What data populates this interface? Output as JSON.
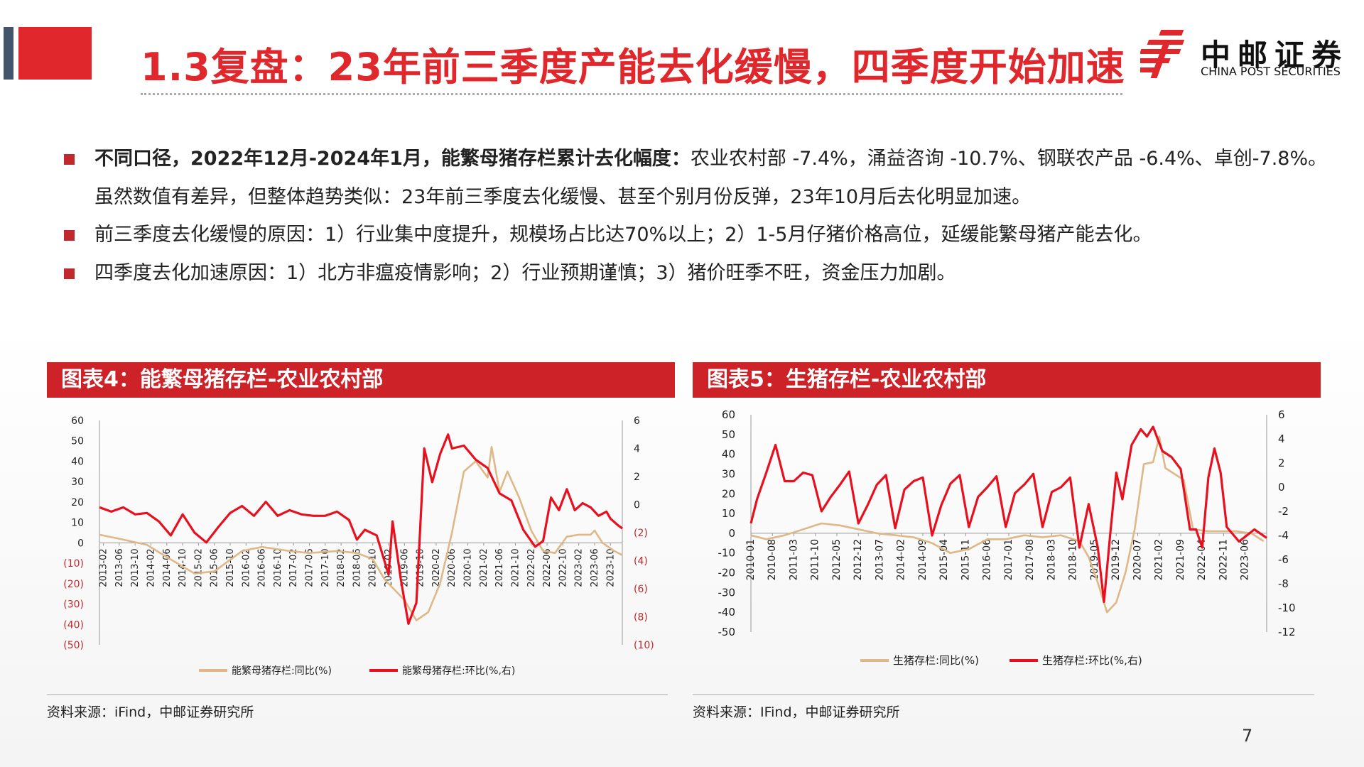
{
  "title": "1.3复盘：23年前三季度产能去化缓慢，四季度开始加速",
  "logo": {
    "cn": "中邮证券",
    "en": "CHINA POST SECURITIES",
    "icon": "china-post-logo-icon",
    "color": "#e0272c"
  },
  "bullets": [
    {
      "bold": "不同口径，2022年12月-2024年1月，能繁母猪存栏累计去化幅度：",
      "text": "农业农村部 -7.4%，涌益咨询 -10.7%、钢联农产品 -6.4%、卓创-7.8%。虽然数值有差异，但整体趋势类似：23年前三季度去化缓慢、甚至个别月份反弹，23年10月后去化明显加速。"
    },
    {
      "bold": "",
      "text": "前三季度去化缓慢的原因：1）行业集中度提升，规模场占比达70%以上；2）1-5月仔猪价格高位，延缓能繁母猪产能去化。"
    },
    {
      "bold": "",
      "text": "四季度去化加速原因：1）北方非瘟疫情影响；2）行业预期谨慎；3）猪价旺季不旺，资金压力加剧。"
    }
  ],
  "colors": {
    "accent": "#e0272c",
    "header": "#cc2228",
    "line_tan": "#deb887",
    "line_red": "#e8101e"
  },
  "page_number": "7",
  "chart_data": [
    {
      "type": "line",
      "header": "图表4：能繁母猪存栏-农业农村部",
      "source": "资料来源：iFind，中邮证券研究所",
      "x_ticks": [
        "2013-02",
        "2013-06",
        "2013-10",
        "2014-02",
        "2014-06",
        "2014-10",
        "2015-02",
        "2015-06",
        "2015-10",
        "2016-02",
        "2016-06",
        "2016-10",
        "2017-02",
        "2017-06",
        "2017-10",
        "2018-02",
        "2018-06",
        "2018-10",
        "2019-02",
        "2019-06",
        "2019-10",
        "2020-02",
        "2020-06",
        "2020-10",
        "2021-02",
        "2021-06",
        "2021-10",
        "2022-02",
        "2022-06",
        "2022-10",
        "2023-02",
        "2023-06",
        "2023-10"
      ],
      "y_left": {
        "min": -50,
        "max": 60,
        "step": 10,
        "labels": [
          "60",
          "50",
          "40",
          "30",
          "20",
          "10",
          "0",
          "(10)",
          "(20)",
          "(30)",
          "(40)",
          "(50)"
        ]
      },
      "y_right": {
        "min": -10,
        "max": 6,
        "step": 2,
        "labels": [
          "6",
          "4",
          "2",
          "0",
          "(2)",
          "(4)",
          "(6)",
          "(8)",
          "(10)"
        ]
      },
      "x_range": [
        "2013-01",
        "2024-01"
      ],
      "grid": false,
      "legend_position": "bottom",
      "series": [
        {
          "name": "能繁母猪存栏:同比(%)",
          "axis": "left",
          "color": "#deb887",
          "points": [
            [
              "2013-01",
              4
            ],
            [
              "2013-06",
              2
            ],
            [
              "2014-01",
              -1
            ],
            [
              "2014-06",
              -7
            ],
            [
              "2015-01",
              -15
            ],
            [
              "2015-06",
              -14
            ],
            [
              "2016-01",
              -4
            ],
            [
              "2016-06",
              -2
            ],
            [
              "2017-01",
              -4
            ],
            [
              "2017-06",
              -5
            ],
            [
              "2018-01",
              -4
            ],
            [
              "2018-06",
              -5
            ],
            [
              "2018-10",
              -8
            ],
            [
              "2019-01",
              -18
            ],
            [
              "2019-06",
              -28
            ],
            [
              "2019-09",
              -38
            ],
            [
              "2019-12",
              -34
            ],
            [
              "2020-03",
              -20
            ],
            [
              "2020-06",
              5
            ],
            [
              "2020-09",
              35
            ],
            [
              "2020-12",
              40
            ],
            [
              "2021-03",
              32
            ],
            [
              "2021-04",
              47
            ],
            [
              "2021-06",
              25
            ],
            [
              "2021-08",
              35
            ],
            [
              "2021-11",
              22
            ],
            [
              "2022-02",
              6
            ],
            [
              "2022-05",
              -4
            ],
            [
              "2022-08",
              -5
            ],
            [
              "2022-11",
              3
            ],
            [
              "2023-02",
              4
            ],
            [
              "2023-05",
              4
            ],
            [
              "2023-06",
              6
            ],
            [
              "2023-08",
              0
            ],
            [
              "2023-11",
              -4
            ],
            [
              "2024-01",
              -6
            ]
          ]
        },
        {
          "name": "能繁母猪存栏:环比(%,右)",
          "axis": "right",
          "color": "#e8101e",
          "points": [
            [
              "2013-01",
              -0.2
            ],
            [
              "2013-04",
              -0.5
            ],
            [
              "2013-07",
              -0.2
            ],
            [
              "2013-10",
              -0.7
            ],
            [
              "2014-01",
              -0.6
            ],
            [
              "2014-04",
              -1.2
            ],
            [
              "2014-07",
              -2.2
            ],
            [
              "2014-10",
              -0.7
            ],
            [
              "2015-01",
              -2.0
            ],
            [
              "2015-04",
              -2.7
            ],
            [
              "2015-07",
              -1.6
            ],
            [
              "2015-10",
              -0.6
            ],
            [
              "2016-01",
              -0.1
            ],
            [
              "2016-04",
              -0.8
            ],
            [
              "2016-07",
              0.2
            ],
            [
              "2016-10",
              -0.8
            ],
            [
              "2017-01",
              -0.4
            ],
            [
              "2017-04",
              -0.7
            ],
            [
              "2017-07",
              -0.8
            ],
            [
              "2017-10",
              -0.8
            ],
            [
              "2018-01",
              -0.5
            ],
            [
              "2018-04",
              -1.1
            ],
            [
              "2018-06",
              -2.5
            ],
            [
              "2018-08",
              -1.8
            ],
            [
              "2018-11",
              -2.2
            ],
            [
              "2019-02",
              -5.0
            ],
            [
              "2019-03",
              -1.2
            ],
            [
              "2019-05",
              -5.2
            ],
            [
              "2019-07",
              -8.5
            ],
            [
              "2019-09",
              -7.0
            ],
            [
              "2019-11",
              4.0
            ],
            [
              "2020-01",
              1.6
            ],
            [
              "2020-03",
              3.6
            ],
            [
              "2020-05",
              5.0
            ],
            [
              "2020-06",
              4.0
            ],
            [
              "2020-09",
              4.2
            ],
            [
              "2020-12",
              3.2
            ],
            [
              "2021-03",
              2.6
            ],
            [
              "2021-06",
              0.8
            ],
            [
              "2021-09",
              0.3
            ],
            [
              "2021-12",
              -1.8
            ],
            [
              "2022-03",
              -3.0
            ],
            [
              "2022-05",
              -2.6
            ],
            [
              "2022-07",
              0.5
            ],
            [
              "2022-09",
              -0.4
            ],
            [
              "2022-11",
              1.1
            ],
            [
              "2023-01",
              -0.4
            ],
            [
              "2023-03",
              0.1
            ],
            [
              "2023-05",
              -0.2
            ],
            [
              "2023-07",
              -0.8
            ],
            [
              "2023-09",
              -0.5
            ],
            [
              "2023-10",
              -1.0
            ],
            [
              "2023-12",
              -1.5
            ],
            [
              "2024-01",
              -1.7
            ]
          ]
        }
      ]
    },
    {
      "type": "line",
      "header": "图表5：生猪存栏-农业农村部",
      "source": "资料来源：IFind，中邮证券研究所",
      "x_ticks": [
        "2010-01",
        "2010-08",
        "2011-03",
        "2011-10",
        "2012-05",
        "2012-12",
        "2013-07",
        "2014-02",
        "2014-09",
        "2015-04",
        "2015-11",
        "2016-06",
        "2017-01",
        "2017-08",
        "2018-03",
        "2018-10",
        "2019-05",
        "2019-12",
        "2020-07",
        "2021-02",
        "2021-09",
        "2022-04",
        "2022-11",
        "2023-06"
      ],
      "y_left": {
        "min": -50,
        "max": 60,
        "step": 10,
        "labels": [
          "60",
          "50",
          "40",
          "30",
          "20",
          "10",
          "0",
          "-10",
          "-20",
          "-30",
          "-40",
          "-50"
        ]
      },
      "y_right": {
        "min": -12,
        "max": 6,
        "step": 2,
        "labels": [
          "6",
          "4",
          "2",
          "0",
          "-2",
          "-4",
          "-6",
          "-8",
          "-10",
          "-12"
        ]
      },
      "x_range": [
        "2010-01",
        "2024-01"
      ],
      "grid": false,
      "legend_position": "bottom",
      "series": [
        {
          "name": "生猪存栏:同比(%)",
          "axis": "left",
          "color": "#deb887",
          "points": [
            [
              "2010-01",
              -1
            ],
            [
              "2010-06",
              -3
            ],
            [
              "2010-12",
              -1
            ],
            [
              "2011-06",
              2
            ],
            [
              "2011-12",
              5
            ],
            [
              "2012-06",
              4
            ],
            [
              "2012-12",
              2
            ],
            [
              "2013-06",
              0
            ],
            [
              "2013-12",
              -1
            ],
            [
              "2014-06",
              -2
            ],
            [
              "2014-12",
              -5
            ],
            [
              "2015-06",
              -10
            ],
            [
              "2015-12",
              -8
            ],
            [
              "2016-06",
              -3
            ],
            [
              "2016-12",
              -3
            ],
            [
              "2017-06",
              -1
            ],
            [
              "2017-12",
              -2
            ],
            [
              "2018-06",
              -1
            ],
            [
              "2018-12",
              -4
            ],
            [
              "2019-03",
              -12
            ],
            [
              "2019-06",
              -25
            ],
            [
              "2019-09",
              -40
            ],
            [
              "2019-12",
              -35
            ],
            [
              "2020-03",
              -20
            ],
            [
              "2020-06",
              2
            ],
            [
              "2020-09",
              35
            ],
            [
              "2020-12",
              36
            ],
            [
              "2021-02",
              49
            ],
            [
              "2021-04",
              33
            ],
            [
              "2021-07",
              30
            ],
            [
              "2021-10",
              27
            ],
            [
              "2022-01",
              2
            ],
            [
              "2022-06",
              1
            ],
            [
              "2022-11",
              1
            ],
            [
              "2023-03",
              1
            ],
            [
              "2023-08",
              0
            ],
            [
              "2023-12",
              -4
            ]
          ]
        },
        {
          "name": "生猪存栏:环比(%,右)",
          "axis": "right",
          "color": "#e8101e",
          "points": [
            [
              "2010-01",
              -3.0
            ],
            [
              "2010-03",
              -1.0
            ],
            [
              "2010-06",
              1.2
            ],
            [
              "2010-09",
              3.5
            ],
            [
              "2010-12",
              0.5
            ],
            [
              "2011-03",
              0.5
            ],
            [
              "2011-06",
              1.2
            ],
            [
              "2011-09",
              1.0
            ],
            [
              "2011-12",
              -2.0
            ],
            [
              "2012-03",
              -0.8
            ],
            [
              "2012-06",
              0.2
            ],
            [
              "2012-09",
              1.3
            ],
            [
              "2012-12",
              -3.0
            ],
            [
              "2013-03",
              -1.5
            ],
            [
              "2013-06",
              0.2
            ],
            [
              "2013-09",
              1.0
            ],
            [
              "2013-12",
              -3.4
            ],
            [
              "2014-03",
              -0.2
            ],
            [
              "2014-06",
              0.5
            ],
            [
              "2014-09",
              0.8
            ],
            [
              "2014-12",
              -4.0
            ],
            [
              "2015-03",
              -1.5
            ],
            [
              "2015-06",
              0.3
            ],
            [
              "2015-09",
              1.0
            ],
            [
              "2015-12",
              -3.3
            ],
            [
              "2016-03",
              -0.8
            ],
            [
              "2016-06",
              0.0
            ],
            [
              "2016-09",
              0.9
            ],
            [
              "2016-12",
              -3.3
            ],
            [
              "2017-03",
              -0.5
            ],
            [
              "2017-06",
              0.2
            ],
            [
              "2017-09",
              1.1
            ],
            [
              "2017-12",
              -3.3
            ],
            [
              "2018-03",
              -0.4
            ],
            [
              "2018-06",
              0.0
            ],
            [
              "2018-09",
              0.8
            ],
            [
              "2018-12",
              -5.0
            ],
            [
              "2019-03",
              -1.4
            ],
            [
              "2019-06",
              -5.0
            ],
            [
              "2019-08",
              -9.5
            ],
            [
              "2019-10",
              -4.0
            ],
            [
              "2019-12",
              1.2
            ],
            [
              "2020-02",
              -1.0
            ],
            [
              "2020-05",
              3.5
            ],
            [
              "2020-08",
              4.8
            ],
            [
              "2020-10",
              4.2
            ],
            [
              "2020-12",
              5.0
            ],
            [
              "2021-03",
              3.0
            ],
            [
              "2021-06",
              2.5
            ],
            [
              "2021-09",
              1.5
            ],
            [
              "2021-12",
              -3.5
            ],
            [
              "2022-02",
              -3.5
            ],
            [
              "2022-04",
              -5.0
            ],
            [
              "2022-06",
              0.8
            ],
            [
              "2022-08",
              3.2
            ],
            [
              "2022-10",
              1.2
            ],
            [
              "2022-12",
              -3.3
            ],
            [
              "2023-04",
              -4.5
            ],
            [
              "2023-09",
              -3.5
            ],
            [
              "2024-01",
              -4.2
            ]
          ]
        }
      ]
    }
  ]
}
